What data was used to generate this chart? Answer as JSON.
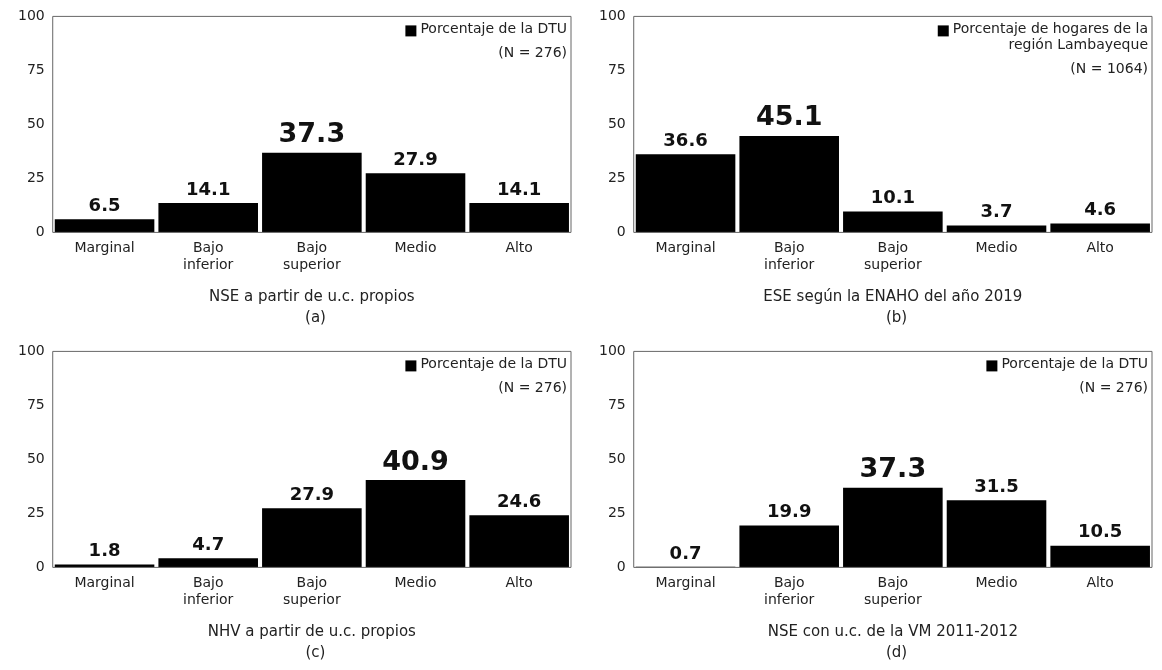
{
  "chart_data": [
    {
      "type": "bar",
      "xlabel": "NSE a partir de u.c. propios",
      "categories": [
        "Marginal",
        "Bajo inferior",
        "Bajo superior",
        "Medio",
        "Alto"
      ],
      "series": [
        {
          "name": "Porcentaje de la DTU",
          "color": "#000000",
          "values": [
            6.5,
            14.1,
            37.3,
            27.9,
            14.1
          ]
        }
      ],
      "ylim": [
        0,
        100
      ],
      "yticks": [
        0,
        25,
        50,
        75,
        100
      ],
      "grid": false,
      "legend": "top right",
      "data_labels": true,
      "annotations": [
        "(N = 276)",
        "(a)"
      ]
    },
    {
      "type": "bar",
      "xlabel": "ESE según la ENAHO del año 2019",
      "categories": [
        "Marginal",
        "Bajo inferior",
        "Bajo superior",
        "Medio",
        "Alto"
      ],
      "series": [
        {
          "name": "Porcentaje de hogares de la región Lambayeque",
          "color": "#000000",
          "values": [
            36.6,
            45.1,
            10.1,
            3.7,
            4.6
          ]
        }
      ],
      "ylim": [
        0,
        100
      ],
      "yticks": [
        0,
        25,
        50,
        75,
        100
      ],
      "grid": false,
      "legend": "top right",
      "data_labels": true,
      "annotations": [
        "(N = 1064)",
        "(b)"
      ]
    },
    {
      "type": "bar",
      "xlabel": "NHV a partir de u.c. propios",
      "categories": [
        "Marginal",
        "Bajo inferior",
        "Bajo superior",
        "Medio",
        "Alto"
      ],
      "series": [
        {
          "name": "Porcentaje de la DTU",
          "color": "#000000",
          "values": [
            1.8,
            4.7,
            27.9,
            40.9,
            24.6
          ]
        }
      ],
      "ylim": [
        0,
        100
      ],
      "yticks": [
        0,
        25,
        50,
        75,
        100
      ],
      "grid": false,
      "legend": "top right",
      "data_labels": true,
      "annotations": [
        "(N = 276)",
        "(c)"
      ]
    },
    {
      "type": "bar",
      "xlabel": "NSE con u.c. de la VM 2011-2012",
      "categories": [
        "Marginal",
        "Bajo inferior",
        "Bajo superior",
        "Medio",
        "Alto"
      ],
      "series": [
        {
          "name": "Porcentaje de la DTU",
          "color": "#000000",
          "values": [
            0.7,
            19.9,
            37.3,
            31.5,
            10.5
          ]
        }
      ],
      "ylim": [
        0,
        100
      ],
      "yticks": [
        0,
        25,
        50,
        75,
        100
      ],
      "grid": false,
      "legend": "top right",
      "data_labels": true,
      "annotations": [
        "(N = 276)",
        "(d)"
      ]
    }
  ]
}
